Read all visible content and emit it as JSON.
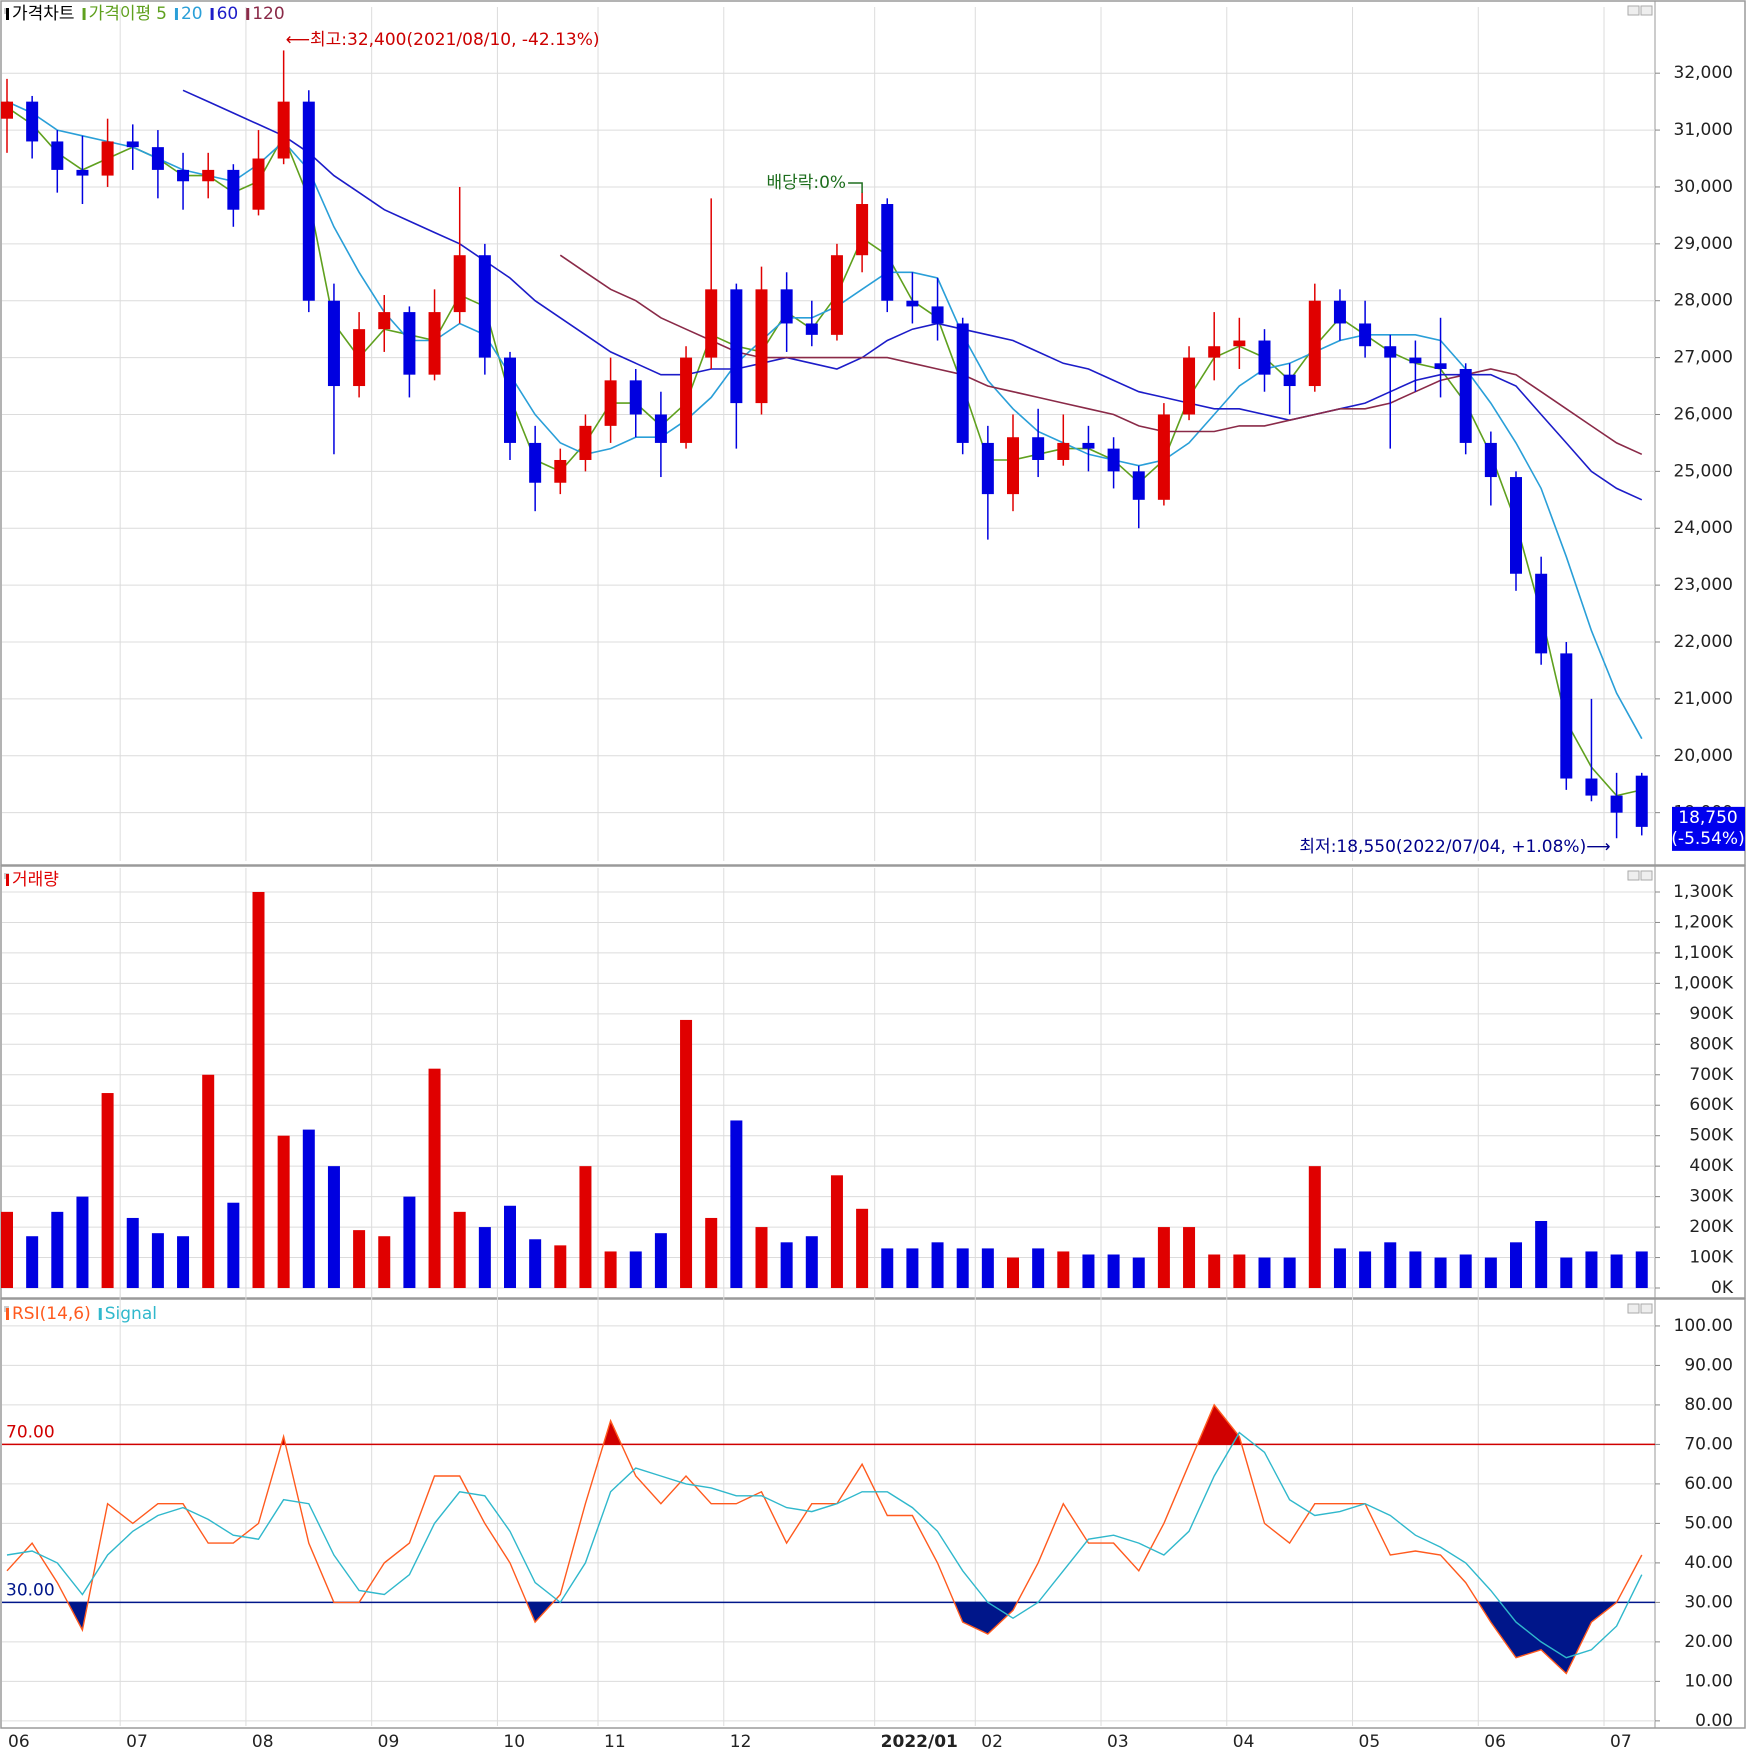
{
  "chart_data": [
    {
      "type": "candlestick",
      "title": "가격차트",
      "ma_label": "가격이평",
      "up_color": "#e00000",
      "down_color": "#0000e0",
      "title_color": "#000000",
      "ylim": [
        18150,
        32900
      ],
      "yticks": [
        {
          "value": 19000,
          "label": "19,000"
        },
        {
          "value": 20000,
          "label": "20,000"
        },
        {
          "value": 21000,
          "label": "21,000"
        },
        {
          "value": 22000,
          "label": "22,000"
        },
        {
          "value": 23000,
          "label": "23,000"
        },
        {
          "value": 24000,
          "label": "24,000"
        },
        {
          "value": 25000,
          "label": "25,000"
        },
        {
          "value": 26000,
          "label": "26,000"
        },
        {
          "value": 27000,
          "label": "27,000"
        },
        {
          "value": 28000,
          "label": "28,000"
        },
        {
          "value": 29000,
          "label": "29,000"
        },
        {
          "value": 30000,
          "label": "30,000"
        },
        {
          "value": 31000,
          "label": "31,000"
        },
        {
          "value": 32000,
          "label": "32,000"
        }
      ],
      "open": [
        31200,
        31500,
        30800,
        30300,
        30200,
        30800,
        30700,
        30300,
        30100,
        30300,
        29600,
        30500,
        31500,
        28000,
        26500,
        27500,
        27800,
        26700,
        27800,
        28800,
        27000,
        25500,
        24800,
        25200,
        25800,
        26600,
        26000,
        25500,
        27000,
        28200,
        26200,
        28200,
        27600,
        27400,
        28800,
        29700,
        28000,
        27900,
        27600,
        25500,
        24600,
        25600,
        25200,
        25500,
        25400,
        25000,
        24500,
        26000,
        27000,
        27200,
        27300,
        26700,
        26500,
        28000,
        27600,
        27200,
        27000,
        26900,
        26800,
        25500,
        24900,
        23200,
        21800,
        19600,
        19300,
        19650
      ],
      "high": [
        31900,
        31600,
        31000,
        30900,
        31200,
        31100,
        31000,
        30600,
        30600,
        30400,
        31000,
        32400,
        31700,
        28300,
        27800,
        28100,
        27900,
        28200,
        30000,
        29000,
        27100,
        25800,
        25400,
        26000,
        27000,
        26800,
        26400,
        27200,
        29800,
        28300,
        28600,
        28500,
        28000,
        29000,
        29900,
        29800,
        28500,
        28400,
        27700,
        25800,
        26000,
        26100,
        26000,
        25800,
        25600,
        25100,
        26200,
        27200,
        27800,
        27700,
        27500,
        26900,
        28300,
        28200,
        28000,
        27400,
        27300,
        27700,
        26900,
        25700,
        25000,
        23500,
        22000,
        21000,
        19700,
        19700
      ],
      "low": [
        30600,
        30500,
        29900,
        29700,
        30000,
        30300,
        29800,
        29600,
        29800,
        29300,
        29500,
        30400,
        27800,
        25300,
        26300,
        27100,
        26300,
        26600,
        27600,
        26700,
        25200,
        24300,
        24600,
        25000,
        25500,
        25600,
        24900,
        25400,
        26800,
        25400,
        26000,
        27100,
        27200,
        27300,
        28500,
        27800,
        27600,
        27300,
        25300,
        23800,
        24300,
        24900,
        25100,
        25000,
        24700,
        24000,
        24400,
        25900,
        26600,
        26800,
        26400,
        26000,
        26400,
        27300,
        27000,
        25400,
        26400,
        26300,
        25300,
        24400,
        22900,
        21600,
        19400,
        19200,
        18550,
        18600
      ],
      "close": [
        31500,
        30800,
        30300,
        30200,
        30800,
        30700,
        30300,
        30100,
        30300,
        29600,
        30500,
        31500,
        28000,
        26500,
        27500,
        27800,
        26700,
        27800,
        28800,
        27000,
        25500,
        24800,
        25200,
        25800,
        26600,
        26000,
        25500,
        27000,
        28200,
        26200,
        28200,
        27600,
        27400,
        28800,
        29700,
        28000,
        27900,
        27600,
        25500,
        24600,
        25600,
        25200,
        25500,
        25400,
        25000,
        24500,
        26000,
        27000,
        27200,
        27300,
        26700,
        26500,
        28000,
        27600,
        27200,
        27000,
        26900,
        26800,
        25500,
        24900,
        23200,
        21800,
        19600,
        19300,
        19000,
        18750
      ],
      "series": [
        {
          "name": "5",
          "color": "#5fa01e",
          "values": [
            31400,
            31100,
            30600,
            30300,
            30500,
            30700,
            30500,
            30200,
            30200,
            29900,
            30100,
            30900,
            29800,
            27600,
            27000,
            27500,
            27400,
            27300,
            28100,
            27900,
            26300,
            25200,
            25000,
            25500,
            26200,
            26200,
            25800,
            26200,
            27400,
            27200,
            27100,
            27800,
            27500,
            28100,
            29100,
            28800,
            28000,
            27700,
            26500,
            25200,
            25200,
            25300,
            25400,
            25400,
            25200,
            24800,
            25200,
            26300,
            27000,
            27200,
            27000,
            26600,
            27200,
            27700,
            27400,
            27100,
            26900,
            26800,
            26200,
            25300,
            24100,
            22500,
            20600,
            19800,
            19300,
            19400
          ]
        },
        {
          "name": "20",
          "color": "#2a9fd8",
          "values": [
            31500,
            31300,
            31000,
            30900,
            30800,
            30700,
            30500,
            30300,
            30200,
            30100,
            30400,
            30800,
            30300,
            29300,
            28500,
            27800,
            27300,
            27300,
            27600,
            27400,
            26700,
            26000,
            25500,
            25300,
            25400,
            25600,
            25600,
            25900,
            26300,
            26900,
            27300,
            27700,
            27700,
            27900,
            28200,
            28500,
            28500,
            28400,
            27400,
            26600,
            26100,
            25700,
            25500,
            25300,
            25200,
            25100,
            25200,
            25500,
            26000,
            26500,
            26800,
            26900,
            27100,
            27300,
            27400,
            27400,
            27400,
            27300,
            26800,
            26200,
            25500,
            24700,
            23500,
            22200,
            21100,
            20300
          ]
        },
        {
          "name": "60",
          "color": "#1c1cc8",
          "values": [
            null,
            null,
            null,
            null,
            null,
            null,
            null,
            31700,
            31500,
            31300,
            31100,
            30900,
            30600,
            30200,
            29900,
            29600,
            29400,
            29200,
            29000,
            28700,
            28400,
            28000,
            27700,
            27400,
            27100,
            26900,
            26700,
            26700,
            26800,
            26800,
            26900,
            27000,
            26900,
            26800,
            27000,
            27300,
            27500,
            27600,
            27500,
            27400,
            27300,
            27100,
            26900,
            26800,
            26600,
            26400,
            26300,
            26200,
            26100,
            26100,
            26000,
            25900,
            26000,
            26100,
            26200,
            26400,
            26600,
            26700,
            26700,
            26700,
            26500,
            26000,
            25500,
            25000,
            24700,
            24500
          ]
        },
        {
          "name": "120",
          "color": "#8a2a48",
          "values": [
            null,
            null,
            null,
            null,
            null,
            null,
            null,
            null,
            null,
            null,
            null,
            null,
            null,
            null,
            null,
            null,
            null,
            null,
            null,
            null,
            null,
            null,
            28800,
            28500,
            28200,
            28000,
            27700,
            27500,
            27300,
            27100,
            27000,
            27000,
            27000,
            27000,
            27000,
            27000,
            26900,
            26800,
            26700,
            26500,
            26400,
            26300,
            26200,
            26100,
            26000,
            25800,
            25700,
            25700,
            25700,
            25800,
            25800,
            25900,
            26000,
            26100,
            26100,
            26200,
            26400,
            26600,
            26700,
            26800,
            26700,
            26400,
            26100,
            25800,
            25500,
            25300
          ]
        }
      ],
      "high_note": "⟵최고:32,400(2021/08/10, -42.13%)",
      "dividend_note": "배당락:0%",
      "low_note": "최저:18,550(2022/07/04, +1.08%)⟶",
      "current": {
        "value": 18750,
        "label": "18,750",
        "change": "(-5.54%)",
        "color": "#0000ee"
      }
    },
    {
      "type": "bar",
      "title": "거래량",
      "title_color": "#e00000",
      "up_color": "#e00000",
      "down_color": "#0000e0",
      "ylim": [
        -29500,
        1329500
      ],
      "yticks": [
        {
          "value": 0,
          "label": "0K"
        },
        {
          "value": 100000,
          "label": "100K"
        },
        {
          "value": 200000,
          "label": "200K"
        },
        {
          "value": 300000,
          "label": "300K"
        },
        {
          "value": 400000,
          "label": "400K"
        },
        {
          "value": 500000,
          "label": "500K"
        },
        {
          "value": 600000,
          "label": "600K"
        },
        {
          "value": 700000,
          "label": "700K"
        },
        {
          "value": 800000,
          "label": "800K"
        },
        {
          "value": 900000,
          "label": "900K"
        },
        {
          "value": 1000000,
          "label": "1,000K"
        },
        {
          "value": 1100000,
          "label": "1,100K"
        },
        {
          "value": 1200000,
          "label": "1,200K"
        },
        {
          "value": 1300000,
          "label": "1,300K"
        }
      ],
      "values": [
        250000,
        170000,
        250000,
        300000,
        640000,
        230000,
        180000,
        170000,
        700000,
        280000,
        1300000,
        500000,
        520000,
        400000,
        190000,
        170000,
        300000,
        720000,
        250000,
        200000,
        270000,
        160000,
        140000,
        400000,
        120000,
        120000,
        180000,
        880000,
        230000,
        550000,
        200000,
        150000,
        170000,
        370000,
        260000,
        130000,
        130000,
        150000,
        130000,
        130000,
        100000,
        130000,
        120000,
        110000,
        110000,
        100000,
        200000,
        200000,
        110000,
        110000,
        100000,
        100000,
        400000,
        130000,
        120000,
        150000,
        120000,
        100000,
        110000,
        100000,
        150000,
        220000,
        100000,
        120000,
        110000,
        120000
      ]
    },
    {
      "type": "line",
      "categories": [
        "06",
        null,
        null,
        null,
        null,
        "07",
        null,
        null,
        null,
        null,
        "08",
        null,
        null,
        null,
        null,
        "09",
        null,
        null,
        null,
        null,
        "10",
        null,
        null,
        null,
        "11",
        null,
        null,
        null,
        null,
        "12",
        null,
        null,
        null,
        null,
        null,
        "2022/01",
        null,
        null,
        null,
        "02",
        null,
        null,
        null,
        null,
        "03",
        null,
        null,
        null,
        null,
        "04",
        null,
        null,
        null,
        null,
        "05",
        null,
        null,
        null,
        null,
        "06",
        null,
        null,
        null,
        null,
        "07",
        null
      ],
      "ylim": [
        -1.3,
        105.3
      ],
      "yticks": [
        {
          "value": 0,
          "label": "0.00"
        },
        {
          "value": 10,
          "label": "10.00"
        },
        {
          "value": 20,
          "label": "20.00"
        },
        {
          "value": 30,
          "label": "30.00"
        },
        {
          "value": 40,
          "label": "40.00"
        },
        {
          "value": 50,
          "label": "50.00"
        },
        {
          "value": 60,
          "label": "60.00"
        },
        {
          "value": 70,
          "label": "70.00"
        },
        {
          "value": 80,
          "label": "80.00"
        },
        {
          "value": 90,
          "label": "90.00"
        },
        {
          "value": 100,
          "label": "100.00"
        }
      ],
      "levels": [
        {
          "value": 70,
          "label": "70.00",
          "color": "#d00000"
        },
        {
          "value": 30,
          "label": "30.00",
          "color": "#00168a"
        }
      ],
      "series": [
        {
          "name": "RSI(14,6)",
          "color": "#ff5a1e",
          "values": [
            38,
            45,
            35,
            23,
            55,
            50,
            55,
            55,
            45,
            45,
            50,
            72,
            45,
            30,
            30,
            40,
            45,
            62,
            62,
            50,
            40,
            25,
            32,
            55,
            76,
            62,
            55,
            62,
            55,
            55,
            58,
            45,
            55,
            55,
            65,
            52,
            52,
            40,
            25,
            22,
            28,
            40,
            55,
            45,
            45,
            38,
            50,
            65,
            80,
            72,
            50,
            45,
            55,
            55,
            55,
            42,
            43,
            42,
            35,
            25,
            16,
            18,
            12,
            25,
            30,
            42
          ]
        },
        {
          "name": "Signal",
          "color": "#30b8cc",
          "values": [
            42,
            43,
            40,
            32,
            42,
            48,
            52,
            54,
            51,
            47,
            46,
            56,
            55,
            42,
            33,
            32,
            37,
            50,
            58,
            57,
            48,
            35,
            30,
            40,
            58,
            64,
            62,
            60,
            59,
            57,
            57,
            54,
            53,
            55,
            58,
            58,
            54,
            48,
            38,
            30,
            26,
            30,
            38,
            46,
            47,
            45,
            42,
            48,
            62,
            73,
            68,
            56,
            52,
            53,
            55,
            52,
            47,
            44,
            40,
            33,
            25,
            20,
            16,
            18,
            24,
            37
          ]
        }
      ]
    }
  ]
}
